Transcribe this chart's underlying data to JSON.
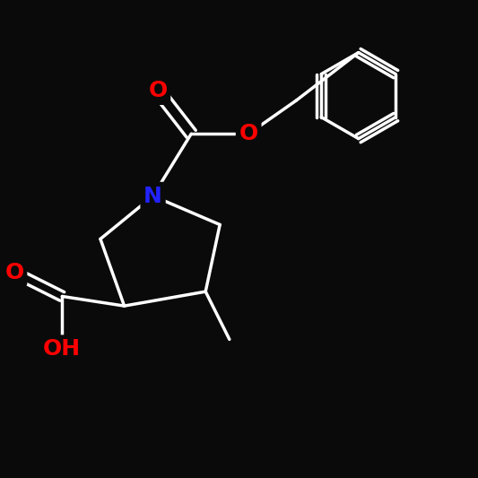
{
  "background_color": "#0a0a0a",
  "bond_color": "#ffffff",
  "bond_width": 2.5,
  "atom_colors": {
    "N": "#2222ff",
    "O": "#ff0000",
    "C": "#ffffff",
    "H": "#ffffff"
  },
  "font_size": 16,
  "font_size_small": 14
}
